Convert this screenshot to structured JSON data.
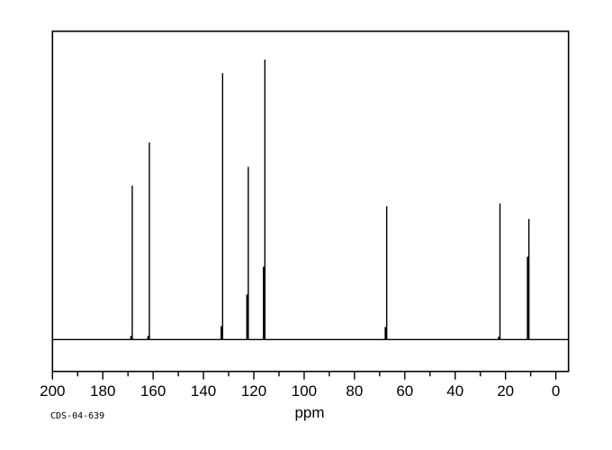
{
  "page": {
    "background_color": "#ffffff",
    "foreground_color": "#000000"
  },
  "annotation": {
    "sample_id": "CDS-04-639"
  },
  "chart_data": {
    "type": "line",
    "subtype": "nmr-spectrum",
    "title": "",
    "xlabel": "ppm",
    "ylabel": "",
    "line_color": "#000000",
    "background_color": "#ffffff",
    "grid": false,
    "legend": false,
    "x_axis": {
      "min": 0,
      "max": 200,
      "reversed": true,
      "major_tick_step": 20,
      "minor_tick_step": 10,
      "tick_labels": [
        "200",
        "180",
        "160",
        "140",
        "120",
        "100",
        "80",
        "60",
        "40",
        "20",
        "0"
      ]
    },
    "y_axis": {
      "visible": false,
      "note": "no intensity scale shown; rel_intensity is % of tallest peak"
    },
    "peaks": [
      {
        "ppm": 168.3,
        "rel_intensity": 55.0,
        "shoulder_intensity": 1.3
      },
      {
        "ppm": 161.5,
        "rel_intensity": 70.4,
        "shoulder_intensity": 1.3
      },
      {
        "ppm": 132.4,
        "rel_intensity": 95.2,
        "shoulder_intensity": 4.8
      },
      {
        "ppm": 122.2,
        "rel_intensity": 61.7,
        "shoulder_intensity": 16.1
      },
      {
        "ppm": 115.6,
        "rel_intensity": 100.0,
        "shoulder_intensity": 26.0
      },
      {
        "ppm": 67.2,
        "rel_intensity": 47.6,
        "shoulder_intensity": 4.5
      },
      {
        "ppm": 22.2,
        "rel_intensity": 48.6,
        "shoulder_intensity": 1.0
      },
      {
        "ppm": 10.7,
        "rel_intensity": 43.1,
        "shoulder_intensity": 29.6
      }
    ]
  }
}
